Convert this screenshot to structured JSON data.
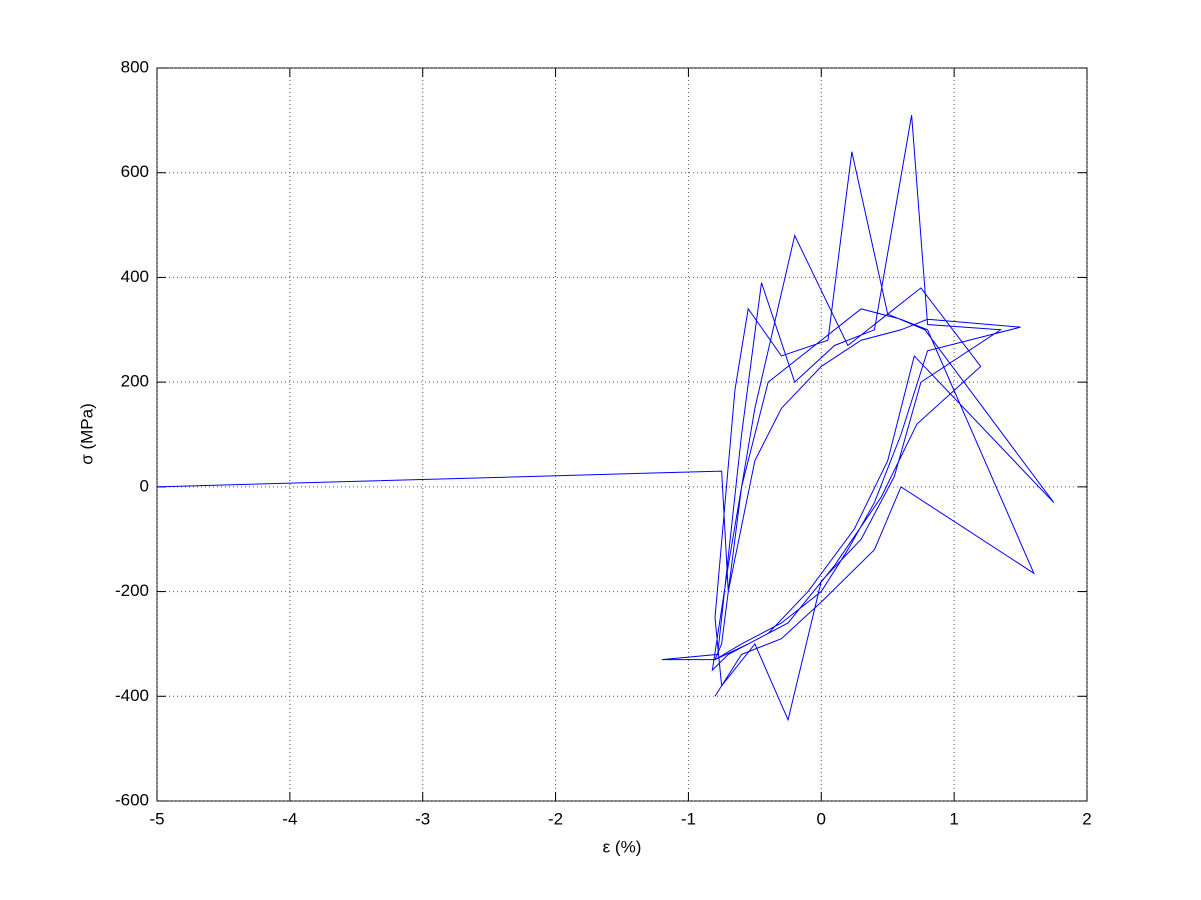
{
  "chart_data": {
    "type": "line",
    "xlabel": "ε (%)",
    "ylabel": "σ (MPa)",
    "xlim": [
      -5,
      2
    ],
    "xticks": [
      -5,
      -4,
      -3,
      -2,
      -1,
      0,
      1,
      2
    ],
    "ylim": [
      -600,
      800
    ],
    "yticks": [
      -600,
      -400,
      -200,
      0,
      200,
      400,
      600,
      800
    ],
    "grid": true,
    "series": [
      {
        "color": "#0000ff",
        "x": [
          -5,
          -0.75,
          -0.7,
          -0.5,
          -0.3,
          0,
          0.3,
          0.6,
          0.8,
          1.5,
          0.8,
          0.6,
          0.4,
          0.2,
          0,
          -0.3,
          -0.6,
          -0.8,
          -1.2,
          -0.78,
          -0.6,
          -0.45,
          -0.2,
          0.1,
          0.4,
          0.68,
          0.8,
          1.35,
          0.75,
          0.55,
          0.3,
          0,
          -0.25,
          -0.5,
          -0.75,
          -0.8,
          -0.65,
          -0.55,
          -0.3,
          0.05,
          0.23,
          0.5,
          0.78,
          1.75,
          0.7,
          0.5,
          0.25,
          -0.1,
          -0.4,
          -0.7,
          -0.82,
          -0.7,
          -0.5,
          -0.2,
          0.2,
          0.5,
          0.75,
          1.2,
          0.72,
          0.45,
          0.1,
          -0.25,
          -0.55,
          -0.8,
          -0.75,
          -0.6,
          -0.4,
          -0.1,
          0.3,
          0.6,
          0.8,
          1.6,
          0.6,
          0.4,
          0,
          -0.3,
          -0.6,
          -0.8
        ],
        "values": [
          0,
          30,
          -200,
          50,
          150,
          230,
          280,
          300,
          320,
          305,
          260,
          100,
          -30,
          -120,
          -200,
          -260,
          -300,
          -330,
          -330,
          -320,
          100,
          390,
          200,
          270,
          300,
          710,
          310,
          300,
          200,
          20,
          -100,
          -180,
          -445,
          -300,
          -380,
          -250,
          185,
          340,
          250,
          280,
          640,
          330,
          300,
          -30,
          250,
          50,
          -80,
          -200,
          -280,
          -320,
          -350,
          -150,
          150,
          480,
          270,
          330,
          380,
          230,
          120,
          -20,
          -150,
          -260,
          -300,
          -330,
          -300,
          0,
          200,
          260,
          340,
          320,
          300,
          -165,
          0,
          -120,
          -220,
          -290,
          -320,
          -400
        ]
      }
    ]
  }
}
